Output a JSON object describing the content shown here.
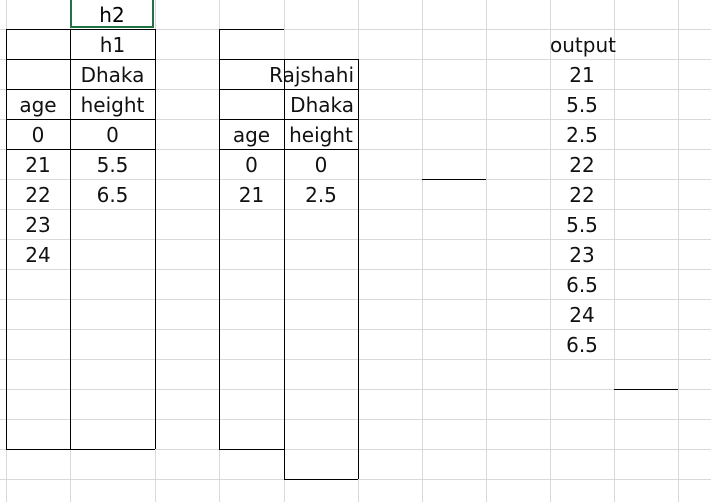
{
  "sheet": {
    "selected_cell": "h2",
    "block1": {
      "row1": "h1",
      "row2": "Dhaka",
      "headers": [
        "age",
        "height"
      ],
      "rows": [
        [
          "0",
          "0"
        ],
        [
          "21",
          "5.5"
        ],
        [
          "22",
          "6.5"
        ],
        [
          "23",
          ""
        ],
        [
          "24",
          ""
        ]
      ]
    },
    "block2": {
      "row1": "Rajshahi",
      "row2": "Dhaka",
      "headers": [
        "age",
        "height"
      ],
      "rows": [
        [
          "0",
          "0"
        ],
        [
          "21",
          "2.5"
        ]
      ]
    },
    "output": {
      "header": "output",
      "values": [
        "21",
        "5.5",
        "2.5",
        "22",
        "22",
        "5.5",
        "23",
        "6.5",
        "24",
        "6.5"
      ]
    }
  }
}
